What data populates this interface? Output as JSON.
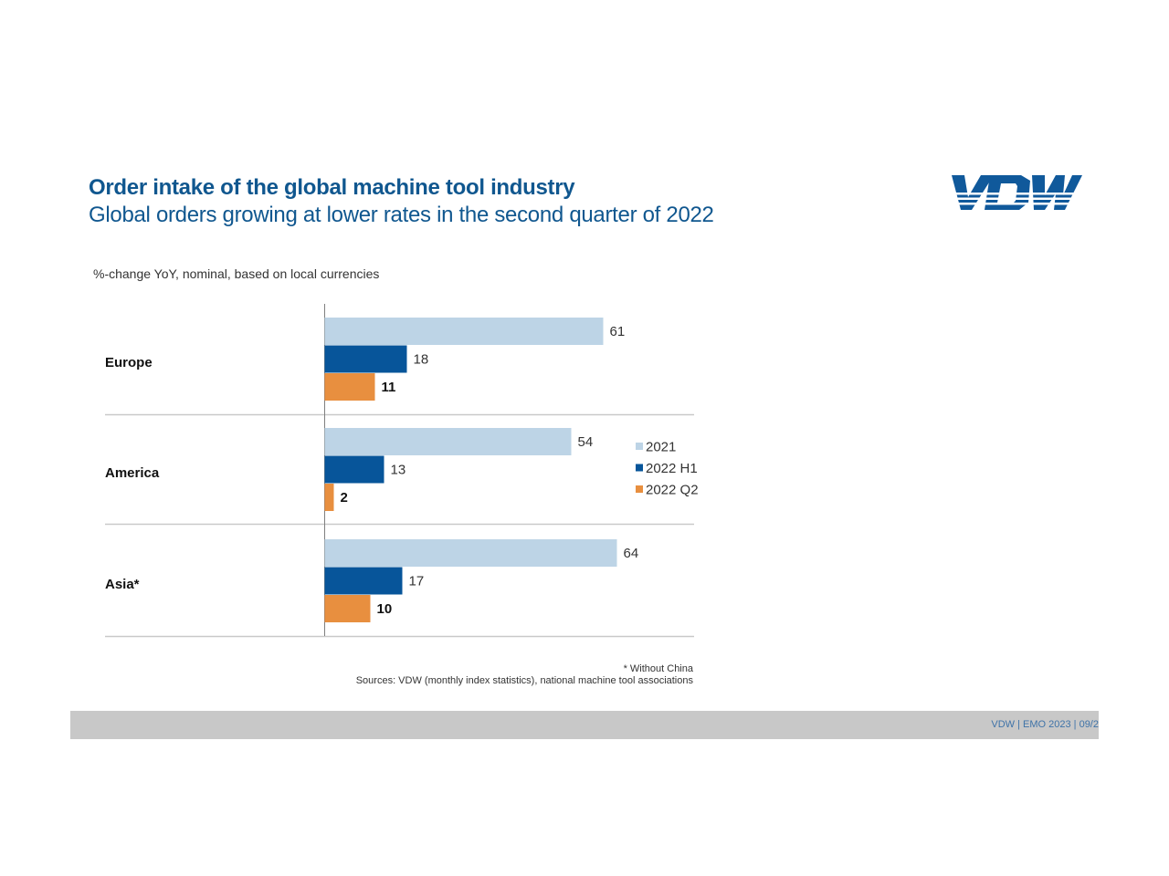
{
  "header": {
    "title": "Order intake of the global machine tool industry",
    "subtitle": "Global orders growing at lower rates in the second quarter of 2022",
    "logo_text": "VDW"
  },
  "unit_note": "%-change YoY,  nominal, based on local currencies",
  "chart_data": {
    "type": "bar",
    "orientation": "horizontal",
    "title": "Order intake of the global machine tool industry",
    "subtitle": "Global orders growing at lower rates in the second quarter of 2022",
    "xlabel": "",
    "ylabel": "%-change YoY, nominal, based on local currencies",
    "categories": [
      "Europe",
      "America",
      "Asia*"
    ],
    "series": [
      {
        "name": "2021",
        "color": "#bdd4e6",
        "values": [
          61,
          54,
          64
        ],
        "label_bold": false
      },
      {
        "name": "2022 H1",
        "color": "#07559a",
        "values": [
          18,
          13,
          17
        ],
        "label_bold": false
      },
      {
        "name": "2022 Q2",
        "color": "#e88f3f",
        "values": [
          11,
          2,
          10
        ],
        "label_bold": true
      }
    ],
    "xlim": [
      0,
      80
    ],
    "grid": false,
    "legend": "right",
    "annotations": [
      "* Without China"
    ]
  },
  "footnotes": {
    "asterisk": "* Without China",
    "sources": "Sources: VDW (monthly index statistics), national machine tool associations"
  },
  "footer": {
    "text": "VDW |  EMO 2023 | 09/2"
  }
}
